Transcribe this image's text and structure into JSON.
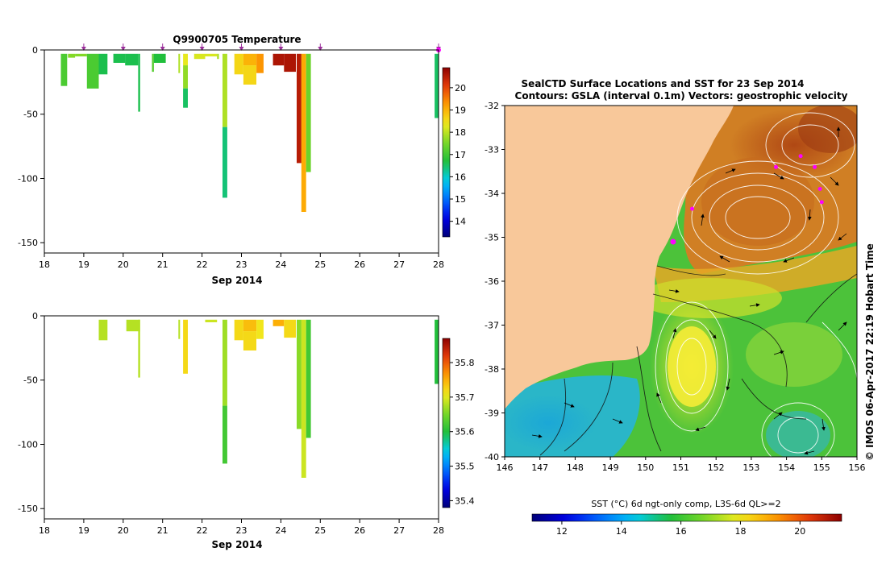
{
  "chart_data": [
    {
      "type": "heatmap",
      "title": "Q9900705  Temperature",
      "xlabel": "Sep 2014",
      "ylabel": "",
      "xlim": [
        18,
        28
      ],
      "ylim": [
        -158,
        0
      ],
      "xticks": [
        "18",
        "19",
        "20",
        "21",
        "22",
        "23",
        "24",
        "25",
        "26",
        "27",
        "28"
      ],
      "yticks": [
        "0",
        "-50",
        "-100",
        "-150"
      ],
      "ytick_values": [
        0,
        -50,
        -100,
        -150
      ],
      "profile_markers": [
        19.0,
        20.0,
        21.0,
        22.0,
        23.0,
        24.0,
        25.0,
        28.0
      ],
      "colorbar": {
        "range": [
          13.3,
          20.9
        ],
        "ticks": [
          "14",
          "15",
          "16",
          "17",
          "18",
          "19",
          "20"
        ],
        "tick_values": [
          14,
          15,
          16,
          17,
          18,
          19,
          20
        ]
      },
      "series": [
        {
          "name": "profiles",
          "columns": [
            {
              "x0": 18.42,
              "x1": 18.58,
              "segs": [
                [
                  -3,
                  -28,
                  17.1
                ]
              ]
            },
            {
              "x0": 18.6,
              "x1": 18.78,
              "segs": [
                [
                  -3,
                  -6,
                  17.6
                ]
              ]
            },
            {
              "x0": 18.78,
              "x1": 19.08,
              "segs": [
                [
                  -3,
                  -5,
                  17.6
                ]
              ]
            },
            {
              "x0": 19.08,
              "x1": 19.38,
              "segs": [
                [
                  -3,
                  -30,
                  17.1
                ]
              ]
            },
            {
              "x0": 19.38,
              "x1": 19.6,
              "segs": [
                [
                  -3,
                  -19,
                  16.6
                ]
              ]
            },
            {
              "x0": 19.75,
              "x1": 20.05,
              "segs": [
                [
                  -3,
                  -10,
                  16.6
                ]
              ]
            },
            {
              "x0": 20.05,
              "x1": 20.38,
              "segs": [
                [
                  -3,
                  -12,
                  16.6
                ]
              ]
            },
            {
              "x0": 20.38,
              "x1": 20.43,
              "segs": [
                [
                  -3,
                  -48,
                  16.6
                ]
              ]
            },
            {
              "x0": 20.73,
              "x1": 20.78,
              "segs": [
                [
                  -3,
                  -17,
                  17.2
                ]
              ]
            },
            {
              "x0": 20.78,
              "x1": 21.08,
              "segs": [
                [
                  -3,
                  -10,
                  16.7
                ]
              ]
            },
            {
              "x0": 21.4,
              "x1": 21.44,
              "segs": [
                [
                  -3,
                  -18,
                  17.9
                ]
              ]
            },
            {
              "x0": 21.52,
              "x1": 21.64,
              "segs": [
                [
                  -3,
                  -12,
                  18.3
                ],
                [
                  -12,
                  -30,
                  17.7
                ],
                [
                  -30,
                  -45,
                  16.5
                ]
              ]
            },
            {
              "x0": 21.8,
              "x1": 22.08,
              "segs": [
                [
                  -3,
                  -7,
                  18.2
                ]
              ]
            },
            {
              "x0": 22.08,
              "x1": 22.38,
              "segs": [
                [
                  -3,
                  -5,
                  18.2
                ]
              ]
            },
            {
              "x0": 22.38,
              "x1": 22.43,
              "segs": [
                [
                  -3,
                  -7,
                  17.9
                ]
              ]
            },
            {
              "x0": 22.52,
              "x1": 22.64,
              "segs": [
                [
                  -3,
                  -60,
                  17.9
                ],
                [
                  -60,
                  -115,
                  16.4
                ]
              ]
            },
            {
              "x0": 22.82,
              "x1": 23.05,
              "segs": [
                [
                  -3,
                  -19,
                  18.6
                ]
              ]
            },
            {
              "x0": 23.05,
              "x1": 23.38,
              "segs": [
                [
                  -3,
                  -12,
                  19.0
                ],
                [
                  -12,
                  -27,
                  18.6
                ]
              ]
            },
            {
              "x0": 23.38,
              "x1": 23.56,
              "segs": [
                [
                  -3,
                  -18,
                  19.3
                ]
              ]
            },
            {
              "x0": 23.8,
              "x1": 24.08,
              "segs": [
                [
                  -3,
                  -12,
                  20.6
                ]
              ]
            },
            {
              "x0": 24.08,
              "x1": 24.38,
              "segs": [
                [
                  -3,
                  -17,
                  20.6
                ]
              ]
            },
            {
              "x0": 24.4,
              "x1": 24.52,
              "segs": [
                [
                  -3,
                  -88,
                  20.5
                ]
              ]
            },
            {
              "x0": 24.52,
              "x1": 24.64,
              "segs": [
                [
                  -3,
                  -126,
                  19.1
                ]
              ]
            },
            {
              "x0": 24.64,
              "x1": 24.76,
              "segs": [
                [
                  -3,
                  -95,
                  17.4
                ]
              ]
            },
            {
              "x0": 27.9,
              "x1": 28.0,
              "segs": [
                [
                  -3,
                  -53,
                  16.5
                ]
              ]
            }
          ]
        }
      ]
    },
    {
      "type": "heatmap",
      "title": "",
      "xlabel": "Sep 2014",
      "ylabel": "",
      "xlim": [
        18,
        28
      ],
      "ylim": [
        -158,
        0
      ],
      "xticks": [
        "18",
        "19",
        "20",
        "21",
        "22",
        "23",
        "24",
        "25",
        "26",
        "27",
        "28"
      ],
      "yticks": [
        "0",
        "-50",
        "-100",
        "-150"
      ],
      "ytick_values": [
        0,
        -50,
        -100,
        -150
      ],
      "colorbar": {
        "range": [
          35.38,
          35.87
        ],
        "ticks": [
          "35.4",
          "35.5",
          "35.6",
          "35.7",
          "35.8"
        ],
        "tick_values": [
          35.4,
          35.5,
          35.6,
          35.7,
          35.8
        ]
      },
      "series": [
        {
          "name": "profiles",
          "columns": [
            {
              "x0": 19.38,
              "x1": 19.6,
              "segs": [
                [
                  -3,
                  -19,
                  35.68
                ]
              ]
            },
            {
              "x0": 20.08,
              "x1": 20.43,
              "segs": [
                [
                  -3,
                  -12,
                  35.68
                ]
              ]
            },
            {
              "x0": 20.38,
              "x1": 20.43,
              "segs": [
                [
                  -3,
                  -48,
                  35.68
                ]
              ]
            },
            {
              "x0": 21.4,
              "x1": 21.44,
              "segs": [
                [
                  -3,
                  -18,
                  35.68
                ]
              ]
            },
            {
              "x0": 21.52,
              "x1": 21.64,
              "segs": [
                [
                  -3,
                  -45,
                  35.72
                ]
              ]
            },
            {
              "x0": 22.08,
              "x1": 22.38,
              "segs": [
                [
                  -3,
                  -5,
                  35.69
                ]
              ]
            },
            {
              "x0": 22.52,
              "x1": 22.64,
              "segs": [
                [
                  -3,
                  -70,
                  35.67
                ],
                [
                  -70,
                  -115,
                  35.62
                ]
              ]
            },
            {
              "x0": 22.82,
              "x1": 23.05,
              "segs": [
                [
                  -3,
                  -19,
                  35.72
                ]
              ]
            },
            {
              "x0": 23.05,
              "x1": 23.38,
              "segs": [
                [
                  -3,
                  -12,
                  35.74
                ],
                [
                  -12,
                  -27,
                  35.72
                ]
              ]
            },
            {
              "x0": 23.38,
              "x1": 23.56,
              "segs": [
                [
                  -3,
                  -18,
                  35.71
                ]
              ]
            },
            {
              "x0": 23.8,
              "x1": 24.08,
              "segs": [
                [
                  -3,
                  -8,
                  35.75
                ]
              ]
            },
            {
              "x0": 24.08,
              "x1": 24.38,
              "segs": [
                [
                  -3,
                  -17,
                  35.72
                ]
              ]
            },
            {
              "x0": 24.4,
              "x1": 24.52,
              "segs": [
                [
                  -3,
                  -88,
                  35.66
                ]
              ]
            },
            {
              "x0": 24.52,
              "x1": 24.64,
              "segs": [
                [
                  -3,
                  -126,
                  35.69
                ]
              ]
            },
            {
              "x0": 24.64,
              "x1": 24.76,
              "segs": [
                [
                  -3,
                  -95,
                  35.62
                ]
              ]
            },
            {
              "x0": 27.9,
              "x1": 28.0,
              "segs": [
                [
                  -3,
                  -53,
                  35.6
                ]
              ]
            }
          ]
        }
      ]
    },
    {
      "type": "heatmap",
      "title": "SealCTD Surface Locations and SST for 23 Sep 2014",
      "subtitle": "Contours: GSLA (interval 0.1m) Vectors: geostrophic velocity",
      "xlabel": "",
      "ylabel": "",
      "xlim": [
        146,
        156
      ],
      "ylim": [
        -40,
        -32
      ],
      "xticks": [
        "146",
        "147",
        "148",
        "149",
        "150",
        "151",
        "152",
        "153",
        "154",
        "155",
        "156"
      ],
      "yticks": [
        "-32",
        "-33",
        "-34",
        "-35",
        "-36",
        "-37",
        "-38",
        "-39",
        "-40"
      ],
      "ytick_values": [
        -32,
        -33,
        -34,
        -35,
        -36,
        -37,
        -38,
        -39,
        -40
      ],
      "side_label": "© IMOS 06-Apr-2017 22:19 Hobart Time",
      "seal_locations": [
        {
          "lon": 150.78,
          "lat": -35.1
        },
        {
          "lon": 151.32,
          "lat": -34.35
        },
        {
          "lon": 153.7,
          "lat": -33.4
        },
        {
          "lon": 154.4,
          "lat": -33.15
        },
        {
          "lon": 154.8,
          "lat": -33.4
        },
        {
          "lon": 154.95,
          "lat": -33.9
        },
        {
          "lon": 155.0,
          "lat": -34.2
        }
      ],
      "colorbar": {
        "label": "SST (°C) 6d ngt-only comp, L3S-6d QL>=2",
        "range": [
          11.0,
          21.4
        ],
        "ticks": [
          "12",
          "14",
          "16",
          "18",
          "20"
        ],
        "tick_values": [
          12,
          14,
          16,
          18,
          20
        ]
      }
    }
  ],
  "colors": {
    "ocean_warm": "#b85a1f",
    "land": "#f8c89a",
    "seal_marker": "#ff00ff",
    "arrow_marker": "#9b2f9b"
  }
}
